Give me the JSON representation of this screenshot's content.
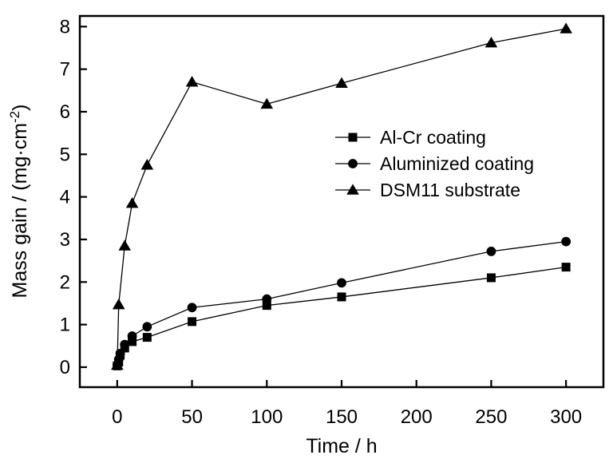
{
  "colors": {
    "background": "#ffffff",
    "foreground": "#000000"
  },
  "chart_data": {
    "type": "line",
    "title": "",
    "xlabel": "Time / h",
    "ylabel": "Mass gain / (mg·cm⁻²)",
    "ylabel_parts": {
      "prefix": "Mass gain / (mg·cm",
      "superscript": "-2",
      "suffix": ")"
    },
    "xlim": [
      -25,
      325
    ],
    "ylim": [
      -0.47,
      8.25
    ],
    "xticks": [
      0,
      50,
      100,
      150,
      200,
      250,
      300
    ],
    "yticks": [
      0,
      1,
      2,
      3,
      4,
      5,
      6,
      7,
      8
    ],
    "grid": false,
    "legend_position": "inside upper-middle right",
    "series": [
      {
        "name": "Al-Cr coating",
        "marker": "square",
        "color": "#000000",
        "x": [
          0,
          1,
          2,
          5,
          10,
          20,
          50,
          100,
          150,
          250,
          300
        ],
        "y": [
          0.03,
          0.12,
          0.28,
          0.45,
          0.6,
          0.7,
          1.07,
          1.45,
          1.65,
          2.1,
          2.35
        ]
      },
      {
        "name": "Aluminized coating",
        "marker": "circle",
        "color": "#000000",
        "x": [
          0,
          1,
          2,
          5,
          10,
          20,
          50,
          100,
          150,
          250,
          300
        ],
        "y": [
          0.05,
          0.18,
          0.32,
          0.53,
          0.73,
          0.95,
          1.4,
          1.6,
          1.98,
          2.72,
          2.95
        ]
      },
      {
        "name": "DSM11 substrate",
        "marker": "triangle",
        "color": "#000000",
        "x": [
          0,
          1,
          5,
          10,
          20,
          50,
          100,
          150,
          250,
          300
        ],
        "y": [
          0.05,
          1.47,
          2.85,
          3.85,
          4.75,
          6.7,
          6.18,
          6.67,
          7.62,
          7.95
        ]
      }
    ]
  }
}
